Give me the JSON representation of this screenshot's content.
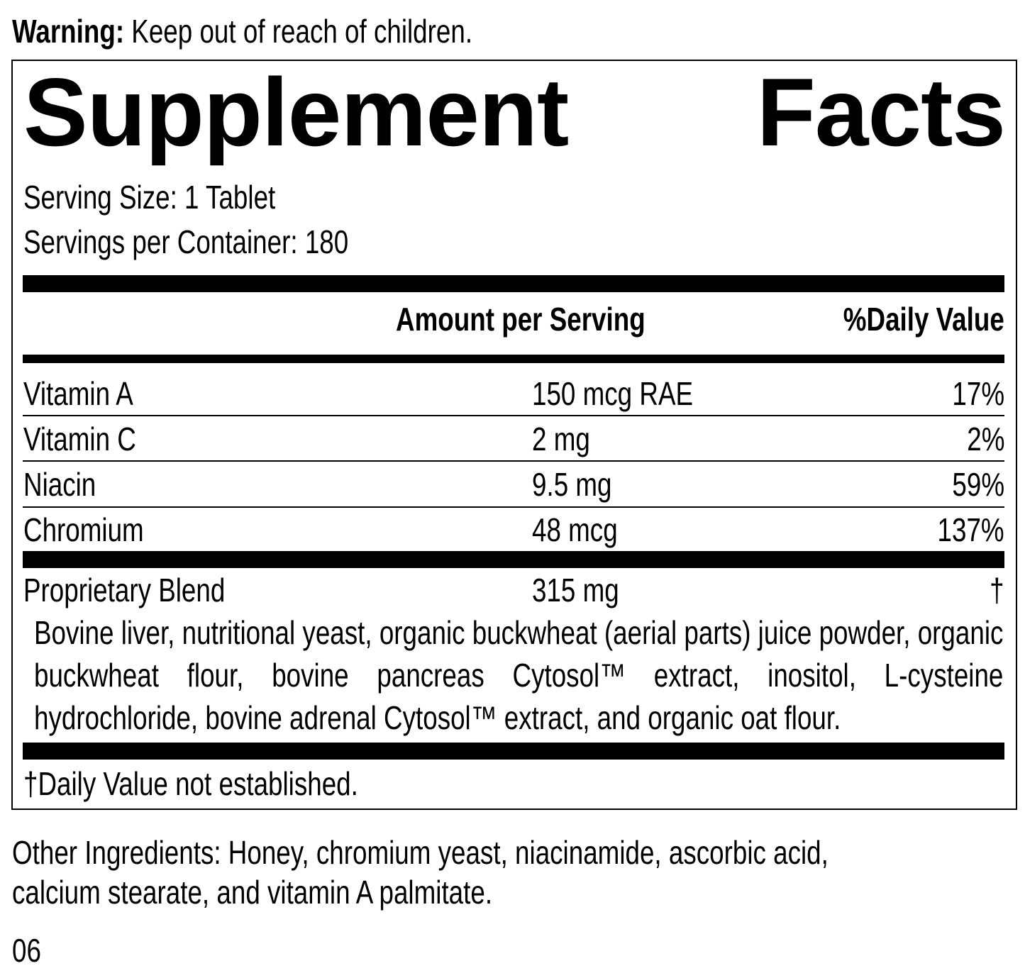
{
  "warning": {
    "label": "Warning:",
    "text": " Keep out of reach of children."
  },
  "title": {
    "word1": "Supplement",
    "word2": "Facts"
  },
  "serving_size": "Serving Size: 1 Tablet",
  "servings_per_container": "Servings per Container: 180",
  "table": {
    "headers": {
      "amount": "Amount per Serving",
      "dv": "%Daily Value"
    },
    "rows": [
      {
        "name": "Vitamin A",
        "amount": "150 mcg RAE",
        "dv": "17%"
      },
      {
        "name": "Vitamin C",
        "amount": "2 mg",
        "dv": "2%"
      },
      {
        "name": "Niacin",
        "amount": "9.5 mg",
        "dv": "59%"
      },
      {
        "name": "Chromium",
        "amount": "48 mcg",
        "dv": "137%"
      }
    ],
    "blend": {
      "name": "Proprietary Blend",
      "amount": "315 mg",
      "dv": "†",
      "ingredients": "Bovine liver, nutritional yeast, organic buckwheat (aerial parts) juice powder, organic buckwheat flour, bovine pancreas Cytosol™ extract, inositol, L-cysteine hydrochloride, bovine adrenal Cytosol™ extract, and organic oat flour."
    }
  },
  "footnote": "†Daily Value not established.",
  "other_ingredients": {
    "line1": "Other Ingredients: Honey, chromium yeast, niacinamide, ascorbic acid,",
    "line2": "calcium stearate, and vitamin A palmitate."
  },
  "code": "06"
}
